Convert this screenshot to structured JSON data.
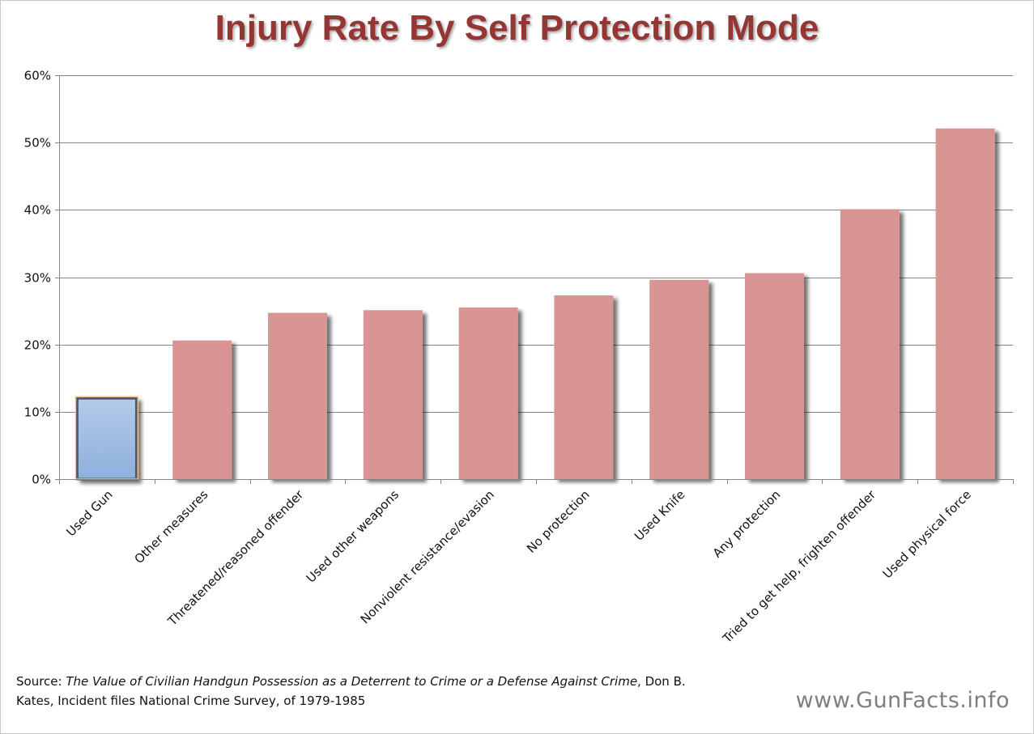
{
  "chart_data": {
    "type": "bar",
    "title": "Injury Rate By Self Protection Mode",
    "categories": [
      "Used Gun",
      "Other measures",
      "Threatened/reasoned offender",
      "Used other weapons",
      "Nonviolent resistance/evasion",
      "No protection",
      "Used Knife",
      "Any protection",
      "Tried to get help, frighten offender",
      "Used physical force"
    ],
    "values": [
      12,
      20.6,
      24.7,
      25.1,
      25.5,
      27.3,
      29.6,
      30.6,
      40.1,
      52.1
    ],
    "y_unit": "%",
    "ylim": [
      0,
      60
    ],
    "yticks": [
      "0%",
      "10%",
      "20%",
      "30%",
      "40%",
      "50%",
      "60%"
    ],
    "grid": true,
    "highlight_index": 0,
    "colors": {
      "bar": "#d99594",
      "highlight_bar": "#9dbbe3",
      "highlight_border": "#f5c58a",
      "title": "#943634",
      "gridline": "#868686"
    }
  },
  "source": {
    "prefix": "Source: ",
    "title_italic": "The Value of Civilian Handgun Possession as a Deterrent to Crime or a Defense Against Crime",
    "suffix": ", Don B. Kates, Incident files National Crime Survey, of 1979-1985"
  },
  "watermark": "www.GunFacts.info"
}
